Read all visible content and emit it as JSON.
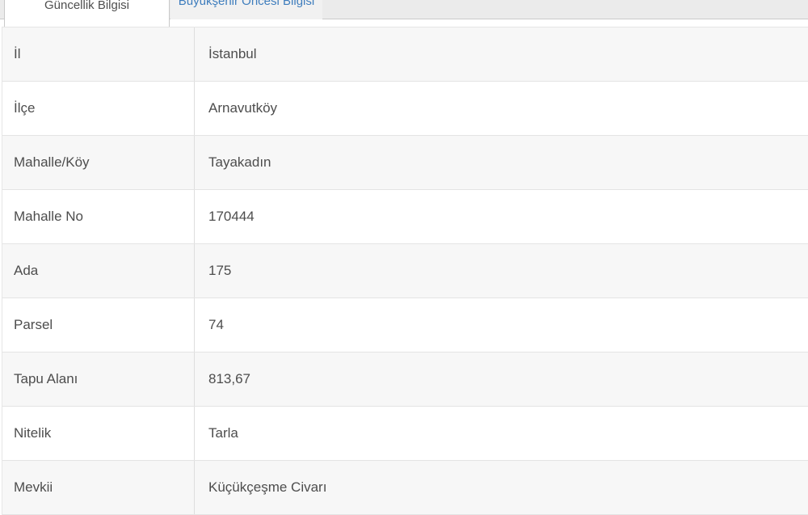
{
  "panel": {
    "description": "Parcel information panel (cadastral query result)"
  },
  "tabs": {
    "active": {
      "label": "Güncellik Bilgisi"
    },
    "inactive": {
      "label": "Büyükşehir Öncesi Bilgisi"
    }
  },
  "table": {
    "rows": [
      {
        "label": "İl",
        "value": "İstanbul"
      },
      {
        "label": "İlçe",
        "value": "Arnavutköy"
      },
      {
        "label": "Mahalle/Köy",
        "value": "Tayakadın"
      },
      {
        "label": "Mahalle No",
        "value": "170444"
      },
      {
        "label": "Ada",
        "value": "175"
      },
      {
        "label": "Parsel",
        "value": "74"
      },
      {
        "label": "Tapu Alanı",
        "value": "813,67"
      },
      {
        "label": "Nitelik",
        "value": "Tarla"
      },
      {
        "label": "Mevkii",
        "value": "Küçükçeşme Civarı"
      }
    ]
  },
  "colors": {
    "inactive_tab_link_blue": "#3e7dbd",
    "active_tab_text": "#4f4f4f",
    "tabbar_background": "#ebebeb",
    "row_stripe": "#f7f7f7",
    "table_border": "#e4e4e4",
    "cell_text": "#4d4d4d"
  }
}
